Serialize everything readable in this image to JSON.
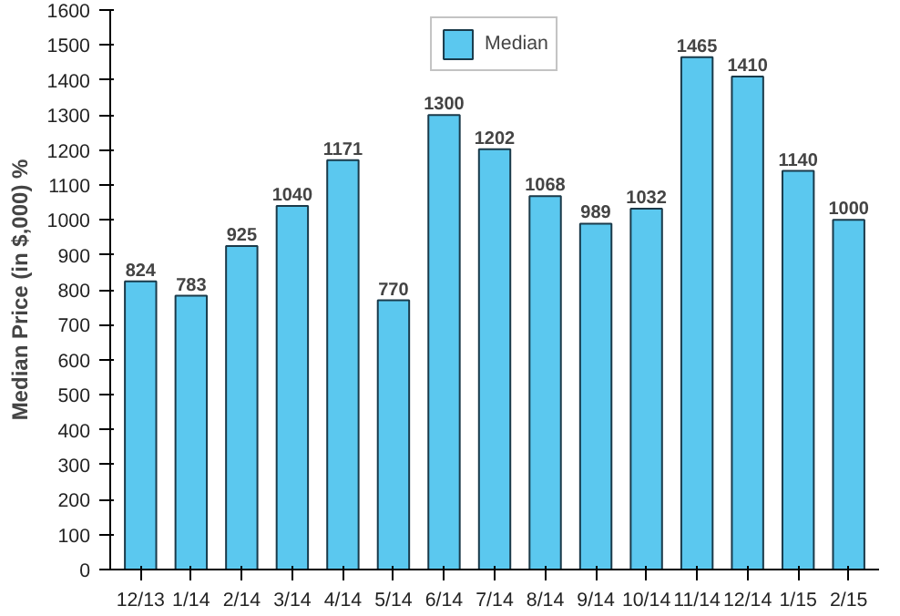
{
  "chart_data": {
    "type": "bar",
    "ylabel": "Median Price (in $,000) %",
    "categories": [
      "12/13",
      "1/14",
      "2/14",
      "3/14",
      "4/14",
      "5/14",
      "6/14",
      "7/14",
      "8/14",
      "9/14",
      "10/14",
      "11/14",
      "12/14",
      "1/15",
      "2/15"
    ],
    "series": [
      {
        "name": "Median",
        "color": "#5bc8ef",
        "values": [
          824,
          783,
          925,
          1040,
          1171,
          770,
          1300,
          1202,
          1068,
          989,
          1032,
          1465,
          1410,
          1140,
          1000
        ]
      }
    ],
    "ylim": [
      0,
      1600
    ],
    "yticks": [
      0,
      100,
      200,
      300,
      400,
      500,
      600,
      700,
      800,
      900,
      1000,
      1100,
      1200,
      1300,
      1400,
      1500,
      1600
    ],
    "data_labels": true,
    "legend": "top",
    "grid": false
  }
}
